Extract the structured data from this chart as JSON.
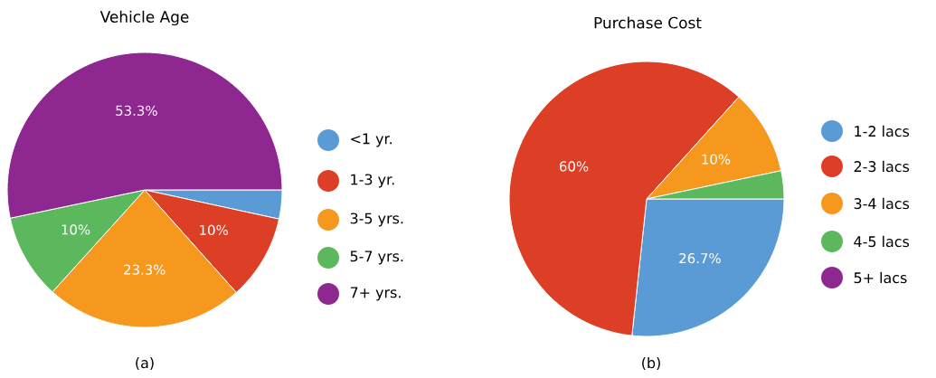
{
  "chart_data": [
    {
      "type": "pie",
      "title": "Vehicle Age",
      "categories": [
        "<1 yr.",
        "1-3 yr.",
        "3-5 yrs.",
        "5-7 yrs.",
        "7+ yrs."
      ],
      "values": [
        3.4,
        10,
        23.3,
        10,
        53.3
      ],
      "colors": [
        "#5b9bd5",
        "#dc3e26",
        "#f6981d",
        "#5cb85c",
        "#8e278f"
      ],
      "value_labels": [
        null,
        "10%",
        "23.3%",
        "10%",
        "53.3%"
      ],
      "legend": "right",
      "annotations": [
        "(a)"
      ]
    },
    {
      "type": "pie",
      "title": "Purchase Cost",
      "categories": [
        "1-2 lacs",
        "2-3 lacs",
        "3-4 lacs",
        "4-5 lacs",
        "5+ lacs"
      ],
      "values": [
        26.7,
        60,
        10,
        3.3,
        0
      ],
      "colors": [
        "#5b9bd5",
        "#dc3e26",
        "#f6981d",
        "#5cb85c",
        "#8e278f"
      ],
      "value_labels": [
        "26.7%",
        "60%",
        "10%",
        null,
        null
      ],
      "legend": "right",
      "annotations": [
        "(b)"
      ]
    }
  ]
}
